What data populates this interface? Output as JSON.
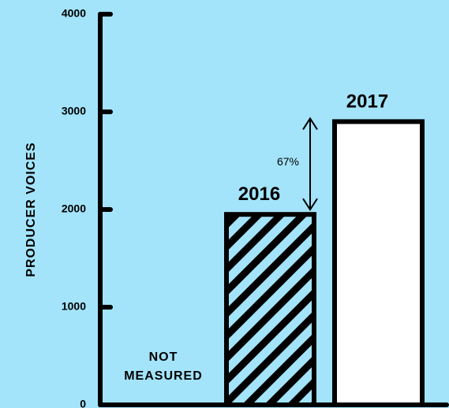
{
  "chart_data": {
    "type": "bar",
    "ylabel": "PRODUCER VOICES",
    "ylim": [
      0,
      4000
    ],
    "yticks": [
      "0",
      "1000",
      "2000",
      "3000",
      "4000"
    ],
    "categories": [
      "NOT MEASURED",
      "2016",
      "2017"
    ],
    "values": [
      null,
      1950,
      2900
    ],
    "bar_labels": [
      "",
      "2016",
      "2017"
    ],
    "not_measured_label": [
      "NOT",
      "MEASURED"
    ],
    "annotation": {
      "text": "67%",
      "from": 1950,
      "to": 2900
    },
    "grid": false,
    "colors": {
      "background": "#a3e4fb",
      "axis": "#000000",
      "bar_fill_2017": "#ffffff",
      "hatch": "#000000"
    }
  }
}
